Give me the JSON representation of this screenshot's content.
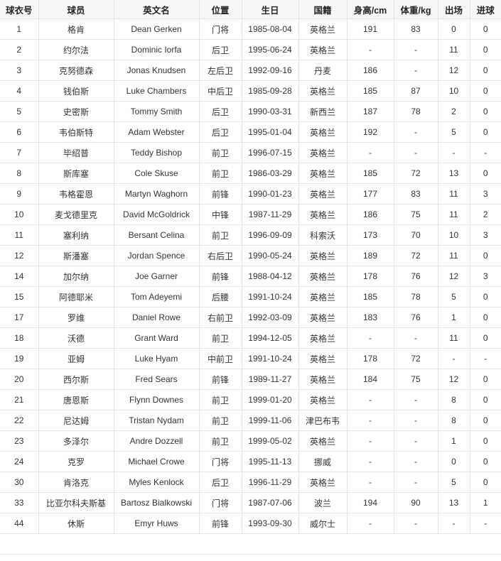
{
  "table": {
    "headers": [
      "球衣号",
      "球员",
      "英文名",
      "位置",
      "生日",
      "国籍",
      "身高/cm",
      "体重/kg",
      "出场",
      "进球"
    ],
    "rows": [
      [
        "1",
        "格肯",
        "Dean Gerken",
        "门将",
        "1985-08-04",
        "英格兰",
        "191",
        "83",
        "0",
        "0"
      ],
      [
        "2",
        "约尔法",
        "Dominic Iorfa",
        "后卫",
        "1995-06-24",
        "英格兰",
        "-",
        "-",
        "11",
        "0"
      ],
      [
        "3",
        "克努德森",
        "Jonas Knudsen",
        "左后卫",
        "1992-09-16",
        "丹麦",
        "186",
        "-",
        "12",
        "0"
      ],
      [
        "4",
        "钱伯斯",
        "Luke Chambers",
        "中后卫",
        "1985-09-28",
        "英格兰",
        "185",
        "87",
        "10",
        "0"
      ],
      [
        "5",
        "史密斯",
        "Tommy Smith",
        "后卫",
        "1990-03-31",
        "新西兰",
        "187",
        "78",
        "2",
        "0"
      ],
      [
        "6",
        "韦伯斯特",
        "Adam Webster",
        "后卫",
        "1995-01-04",
        "英格兰",
        "192",
        "-",
        "5",
        "0"
      ],
      [
        "7",
        "毕绍普",
        "Teddy Bishop",
        "前卫",
        "1996-07-15",
        "英格兰",
        "-",
        "-",
        "-",
        "-"
      ],
      [
        "8",
        "斯库塞",
        "Cole Skuse",
        "前卫",
        "1986-03-29",
        "英格兰",
        "185",
        "72",
        "13",
        "0"
      ],
      [
        "9",
        "韦格霍恩",
        "Martyn Waghorn",
        "前锋",
        "1990-01-23",
        "英格兰",
        "177",
        "83",
        "11",
        "3"
      ],
      [
        "10",
        "麦戈德里克",
        "David McGoldrick",
        "中锋",
        "1987-11-29",
        "英格兰",
        "186",
        "75",
        "11",
        "2"
      ],
      [
        "11",
        "塞利纳",
        "Bersant Celina",
        "前卫",
        "1996-09-09",
        "科索沃",
        "173",
        "70",
        "10",
        "3"
      ],
      [
        "12",
        "斯潘塞",
        "Jordan Spence",
        "右后卫",
        "1990-05-24",
        "英格兰",
        "189",
        "72",
        "11",
        "0"
      ],
      [
        "14",
        "加尔纳",
        "Joe Garner",
        "前锋",
        "1988-04-12",
        "英格兰",
        "178",
        "76",
        "12",
        "3"
      ],
      [
        "15",
        "阿德耶米",
        "Tom Adeyemi",
        "后腰",
        "1991-10-24",
        "英格兰",
        "185",
        "78",
        "5",
        "0"
      ],
      [
        "17",
        "罗维",
        "Daniel Rowe",
        "右前卫",
        "1992-03-09",
        "英格兰",
        "183",
        "76",
        "1",
        "0"
      ],
      [
        "18",
        "沃德",
        "Grant Ward",
        "前卫",
        "1994-12-05",
        "英格兰",
        "-",
        "-",
        "11",
        "0"
      ],
      [
        "19",
        "亚姆",
        "Luke Hyam",
        "中前卫",
        "1991-10-24",
        "英格兰",
        "178",
        "72",
        "-",
        "-"
      ],
      [
        "20",
        "西尔斯",
        "Fred Sears",
        "前锋",
        "1989-11-27",
        "英格兰",
        "184",
        "75",
        "12",
        "0"
      ],
      [
        "21",
        "唐恩斯",
        "Flynn Downes",
        "前卫",
        "1999-01-20",
        "英格兰",
        "-",
        "-",
        "8",
        "0"
      ],
      [
        "22",
        "尼达姆",
        "Tristan Nydam",
        "前卫",
        "1999-11-06",
        "津巴布韦",
        "-",
        "-",
        "8",
        "0"
      ],
      [
        "23",
        "多泽尔",
        "Andre Dozzell",
        "前卫",
        "1999-05-02",
        "英格兰",
        "-",
        "-",
        "1",
        "0"
      ],
      [
        "24",
        "克罗",
        "Michael Crowe",
        "门将",
        "1995-11-13",
        "挪威",
        "-",
        "-",
        "0",
        "0"
      ],
      [
        "30",
        "肯洛克",
        "Myles Kenlock",
        "后卫",
        "1996-11-29",
        "英格兰",
        "-",
        "-",
        "5",
        "0"
      ],
      [
        "33",
        "比亚尔科夫斯基",
        "Bartosz Bialkowski",
        "门将",
        "1987-07-06",
        "波兰",
        "194",
        "90",
        "13",
        "1"
      ],
      [
        "44",
        "休斯",
        "Emyr Huws",
        "前锋",
        "1993-09-30",
        "威尔士",
        "-",
        "-",
        "-",
        "-"
      ]
    ]
  }
}
